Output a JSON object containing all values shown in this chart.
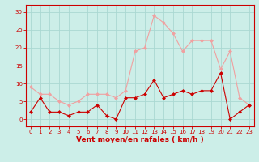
{
  "x": [
    0,
    1,
    2,
    3,
    4,
    5,
    6,
    7,
    8,
    9,
    10,
    11,
    12,
    13,
    14,
    15,
    16,
    17,
    18,
    19,
    20,
    21,
    22,
    23
  ],
  "wind_avg": [
    2,
    6,
    2,
    2,
    1,
    2,
    2,
    4,
    1,
    0,
    6,
    6,
    7,
    11,
    6,
    7,
    8,
    7,
    8,
    8,
    13,
    0,
    2,
    4
  ],
  "wind_gust": [
    9,
    7,
    7,
    5,
    4,
    5,
    7,
    7,
    7,
    6,
    8,
    19,
    20,
    29,
    27,
    24,
    19,
    22,
    22,
    22,
    14,
    19,
    6,
    4
  ],
  "xlabel": "Vent moyen/en rafales ( km/h )",
  "ylim": [
    -2,
    32
  ],
  "yticks": [
    0,
    5,
    10,
    15,
    20,
    25,
    30
  ],
  "xlim": [
    -0.5,
    23.5
  ],
  "bg_color": "#cceee8",
  "grid_color": "#aad8d2",
  "avg_color": "#cc0000",
  "gust_color": "#f0a0a0",
  "line_width": 0.8,
  "marker_size": 2.5,
  "xlabel_fontsize": 6.5,
  "tick_fontsize": 5.0
}
